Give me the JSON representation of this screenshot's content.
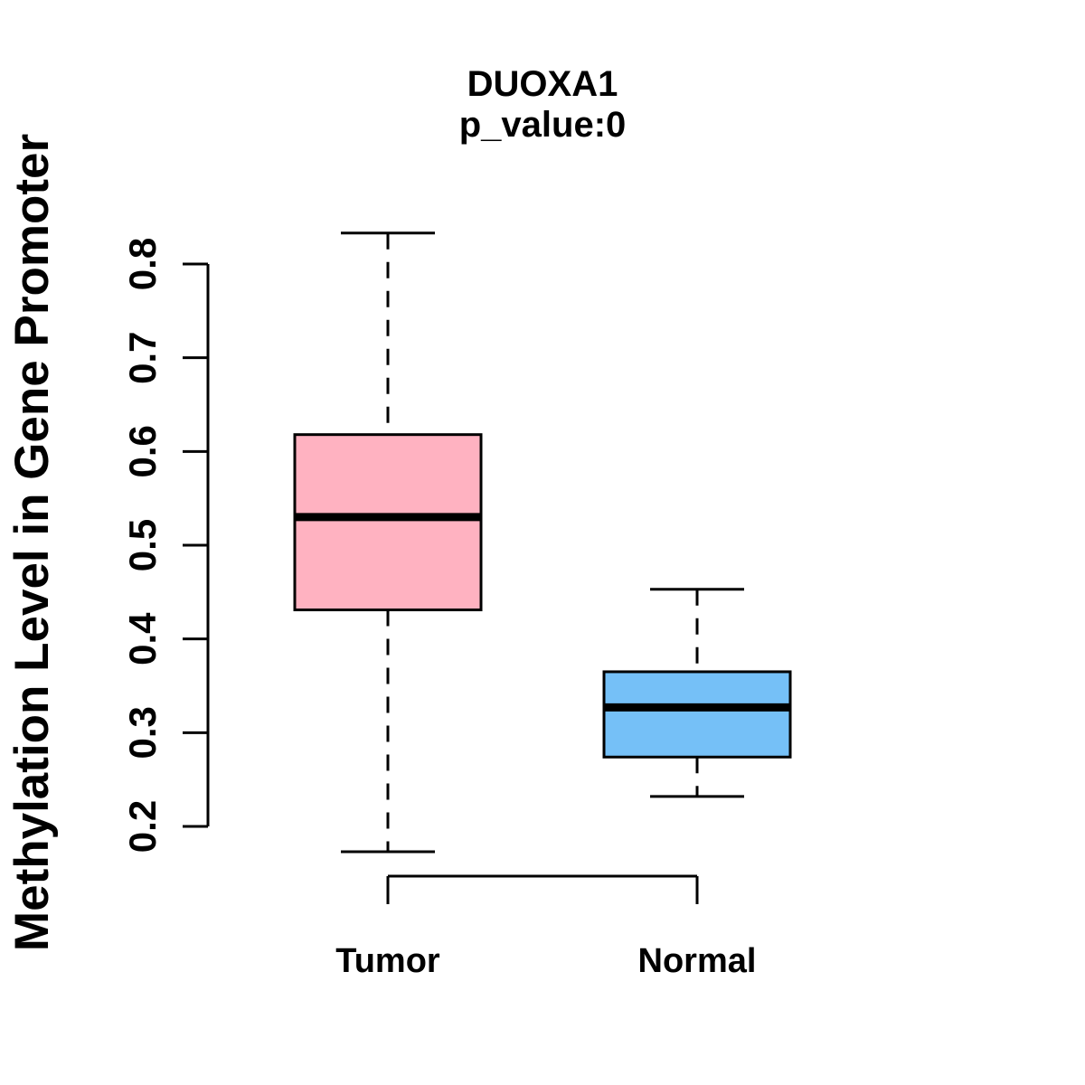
{
  "chart_data": {
    "type": "boxplot",
    "title": "DUOXA1",
    "subtitle": "p_value:0",
    "ylabel": "Methylation Level in Gene Promoter",
    "xlabel": "",
    "categories": [
      "Tumor",
      "Normal"
    ],
    "ylim": [
      0.2,
      0.8
    ],
    "yticks": [
      0.2,
      0.3,
      0.4,
      0.5,
      0.6,
      0.7,
      0.8
    ],
    "ytick_labels": [
      "0.2",
      "0.3",
      "0.4",
      "0.5",
      "0.6",
      "0.7",
      "0.8"
    ],
    "grid": false,
    "legend": false,
    "background_color": "#FFFFFF",
    "stroke_color": "#000000",
    "whisker_style": "dashed",
    "comparison_bracket": true,
    "series": [
      {
        "name": "Tumor",
        "fill_color": "#FFB2C1",
        "whisker_low": 0.173,
        "q1": 0.431,
        "median": 0.53,
        "q3": 0.618,
        "whisker_high": 0.833
      },
      {
        "name": "Normal",
        "fill_color": "#75C0F7",
        "whisker_low": 0.232,
        "q1": 0.274,
        "median": 0.327,
        "q3": 0.365,
        "whisker_high": 0.453
      }
    ]
  }
}
